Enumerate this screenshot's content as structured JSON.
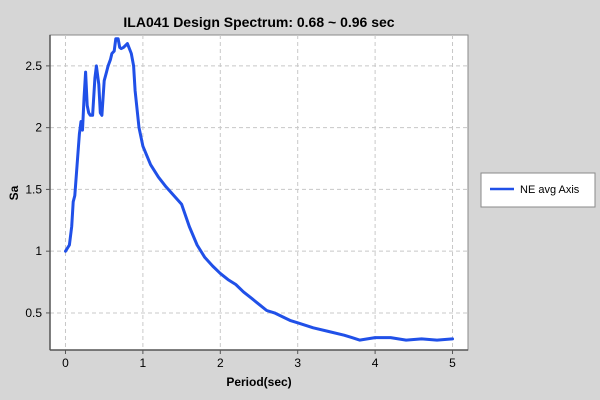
{
  "chart_data": {
    "type": "line",
    "title": "ILA041 Design Spectrum: 0.68 ~ 0.96 sec",
    "xlabel": "Period(sec)",
    "ylabel": "Sa",
    "xlim": [
      -0.2,
      5.2
    ],
    "ylim": [
      0.2,
      2.75
    ],
    "xticks": [
      0,
      1,
      2,
      3,
      4,
      5
    ],
    "yticks": [
      0.5,
      1,
      1.5,
      2,
      2.5
    ],
    "xtick_labels": [
      "0",
      "1",
      "2",
      "3",
      "4",
      "5"
    ],
    "ytick_labels": [
      "0.5",
      "1",
      "1.5",
      "2",
      "2.5"
    ],
    "grid": true,
    "legend_position": "right",
    "series": [
      {
        "name": "NE avg Axis",
        "color": "#2050e8",
        "x": [
          0.0,
          0.05,
          0.08,
          0.1,
          0.12,
          0.15,
          0.18,
          0.2,
          0.22,
          0.24,
          0.26,
          0.28,
          0.3,
          0.32,
          0.35,
          0.38,
          0.4,
          0.43,
          0.45,
          0.47,
          0.5,
          0.53,
          0.55,
          0.58,
          0.6,
          0.63,
          0.65,
          0.68,
          0.7,
          0.72,
          0.75,
          0.8,
          0.85,
          0.88,
          0.9,
          0.95,
          1.0,
          1.1,
          1.2,
          1.3,
          1.4,
          1.5,
          1.6,
          1.7,
          1.8,
          1.9,
          2.0,
          2.1,
          2.2,
          2.3,
          2.4,
          2.5,
          2.6,
          2.7,
          2.8,
          2.9,
          3.0,
          3.2,
          3.4,
          3.6,
          3.7,
          3.8,
          4.0,
          4.2,
          4.4,
          4.6,
          4.8,
          5.0
        ],
        "values": [
          1.0,
          1.05,
          1.2,
          1.4,
          1.45,
          1.7,
          1.95,
          2.05,
          1.98,
          2.25,
          2.45,
          2.18,
          2.12,
          2.1,
          2.1,
          2.4,
          2.5,
          2.35,
          2.12,
          2.1,
          2.38,
          2.45,
          2.5,
          2.55,
          2.6,
          2.62,
          2.72,
          2.72,
          2.65,
          2.64,
          2.65,
          2.68,
          2.6,
          2.5,
          2.3,
          2.0,
          1.85,
          1.7,
          1.6,
          1.52,
          1.45,
          1.38,
          1.2,
          1.05,
          0.95,
          0.88,
          0.82,
          0.77,
          0.73,
          0.67,
          0.62,
          0.57,
          0.52,
          0.5,
          0.47,
          0.44,
          0.42,
          0.38,
          0.35,
          0.32,
          0.3,
          0.28,
          0.3,
          0.3,
          0.28,
          0.29,
          0.28,
          0.29
        ]
      }
    ]
  }
}
